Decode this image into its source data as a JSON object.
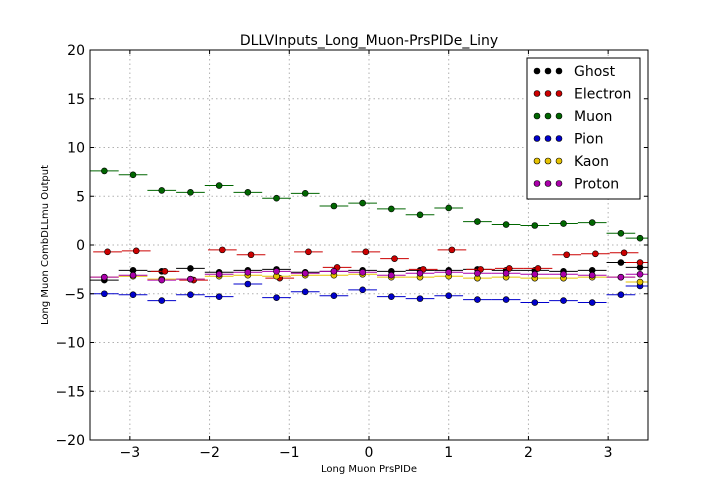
{
  "chart_data": {
    "type": "scatter",
    "title": "DLLVInputs_Long_Muon-PrsPIDe_Liny",
    "xlabel": "Long Muon PrsPIDe",
    "ylabel": "Long Muon CombDLLmu Output",
    "xlim": [
      -3.5,
      3.5
    ],
    "ylim": [
      -20,
      20
    ],
    "xticks": [
      -3,
      -2,
      -1,
      0,
      1,
      2,
      3
    ],
    "yticks": [
      -20,
      -15,
      -10,
      -5,
      0,
      5,
      10,
      15,
      20
    ],
    "grid": true,
    "legend_position": "top-right",
    "bin_half_width": 0.18,
    "x": [
      -3.32,
      -2.96,
      -2.6,
      -2.24,
      -1.88,
      -1.52,
      -1.16,
      -0.8,
      -0.44,
      -0.08,
      0.28,
      0.64,
      1.0,
      1.36,
      1.72,
      2.08,
      2.44,
      2.8,
      3.16,
      3.4
    ],
    "series": [
      {
        "name": "Ghost",
        "color": "#000000",
        "x": [
          -3.32,
          -2.96,
          -2.6,
          -2.24,
          -1.88,
          -1.52,
          -1.16,
          -0.8,
          -0.44,
          -0.08,
          0.28,
          0.64,
          1.0,
          1.36,
          1.72,
          2.08,
          2.44,
          2.8,
          3.16,
          3.4
        ],
        "y": [
          -3.6,
          -2.6,
          -2.7,
          -2.4,
          -2.8,
          -2.6,
          -2.5,
          -2.8,
          -2.7,
          -2.6,
          -2.7,
          -2.6,
          -2.6,
          -2.5,
          -2.6,
          -2.6,
          -2.7,
          -2.6,
          -1.8,
          -2.3
        ]
      },
      {
        "name": "Electron",
        "color": "#cc0000",
        "x": [
          -3.28,
          -2.92,
          -2.56,
          -2.2,
          -1.84,
          -1.48,
          -1.12,
          -0.76,
          -0.4,
          -0.04,
          0.32,
          0.68,
          1.04,
          1.4,
          1.76,
          2.12,
          2.48,
          2.84,
          3.2,
          3.4
        ],
        "y": [
          -0.7,
          -0.6,
          -2.7,
          -3.6,
          -0.5,
          -1.0,
          -3.4,
          -0.7,
          -2.3,
          -0.7,
          -1.4,
          -2.5,
          -0.5,
          -2.5,
          -2.4,
          -2.4,
          -1.0,
          -0.9,
          -0.8,
          -1.8
        ]
      },
      {
        "name": "Muon",
        "color": "#006600",
        "x": [
          -3.32,
          -2.96,
          -2.6,
          -2.24,
          -1.88,
          -1.52,
          -1.16,
          -0.8,
          -0.44,
          -0.08,
          0.28,
          0.64,
          1.0,
          1.36,
          1.72,
          2.08,
          2.44,
          2.8,
          3.16,
          3.4
        ],
        "y": [
          7.6,
          7.2,
          5.6,
          5.4,
          6.1,
          5.4,
          4.8,
          5.3,
          4.0,
          4.3,
          3.7,
          3.1,
          3.8,
          2.4,
          2.1,
          2.0,
          2.2,
          2.3,
          1.2,
          0.7
        ]
      },
      {
        "name": "Pion",
        "color": "#0000cc",
        "x": [
          -3.32,
          -2.96,
          -2.6,
          -2.24,
          -1.88,
          -1.52,
          -1.16,
          -0.8,
          -0.44,
          -0.08,
          0.28,
          0.64,
          1.0,
          1.36,
          1.72,
          2.08,
          2.44,
          2.8,
          3.16,
          3.4
        ],
        "y": [
          -5.0,
          -5.1,
          -5.7,
          -5.1,
          -5.3,
          -4.0,
          -5.4,
          -4.8,
          -5.2,
          -4.6,
          -5.3,
          -5.5,
          -5.2,
          -5.6,
          -5.6,
          -5.9,
          -5.7,
          -5.9,
          -5.1,
          -4.2
        ]
      },
      {
        "name": "Kaon",
        "color": "#e6c200",
        "x": [
          -3.32,
          -2.96,
          -2.6,
          -2.24,
          -1.88,
          -1.52,
          -1.16,
          -0.8,
          -0.44,
          -0.08,
          0.28,
          0.64,
          1.0,
          1.36,
          1.72,
          2.08,
          2.44,
          2.8,
          3.16,
          3.4
        ],
        "y": [
          -3.3,
          -3.2,
          -3.5,
          -3.5,
          -3.2,
          -3.1,
          -3.2,
          -3.1,
          -3.1,
          -3.0,
          -3.3,
          -3.3,
          -3.2,
          -3.4,
          -3.3,
          -3.4,
          -3.4,
          -3.3,
          -3.3,
          -3.8
        ]
      },
      {
        "name": "Proton",
        "color": "#aa00aa",
        "x": [
          -3.32,
          -2.96,
          -2.6,
          -2.24,
          -1.88,
          -1.52,
          -1.16,
          -0.8,
          -0.44,
          -0.08,
          0.28,
          0.64,
          1.0,
          1.36,
          1.72,
          2.08,
          2.44,
          2.8,
          3.16,
          3.4
        ],
        "y": [
          -3.3,
          -3.1,
          -3.6,
          -3.5,
          -3.0,
          -2.8,
          -2.7,
          -2.9,
          -2.7,
          -2.8,
          -3.1,
          -2.9,
          -2.8,
          -2.9,
          -2.9,
          -3.0,
          -3.0,
          -3.1,
          -3.3,
          -3.0
        ]
      }
    ]
  }
}
